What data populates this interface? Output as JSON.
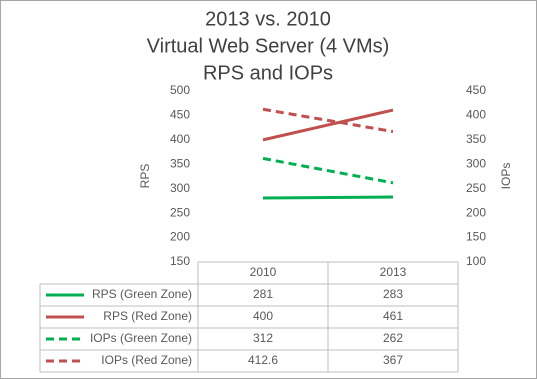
{
  "chart_data": {
    "type": "line",
    "title_lines": [
      "2013 vs. 2010",
      "Virtual Web Server (4 VMs)",
      "RPS and IOPs"
    ],
    "y_label": "RPS",
    "y2_label": "IOPs",
    "categories": [
      "2010",
      "2013"
    ],
    "ylim": [
      150,
      500
    ],
    "yticks": [
      150,
      200,
      250,
      300,
      350,
      400,
      450,
      500
    ],
    "y2lim": [
      100,
      450
    ],
    "y2ticks": [
      100,
      150,
      200,
      250,
      300,
      350,
      400,
      450
    ],
    "series": [
      {
        "name": "RPS (Green Zone)",
        "color": "#00b050",
        "dashed": false,
        "values": [
          281,
          283
        ]
      },
      {
        "name": "RPS (Red Zone)",
        "color": "#c0504d",
        "dashed": false,
        "values": [
          400,
          461
        ]
      },
      {
        "name": "IOPs (Green Zone)",
        "color": "#00b050",
        "dashed": true,
        "axis": "y2",
        "values": [
          312,
          262
        ]
      },
      {
        "name": "IOPs (Red Zone)",
        "color": "#c0504d",
        "dashed": true,
        "axis": "y2",
        "values": [
          412.6,
          367
        ]
      }
    ]
  }
}
